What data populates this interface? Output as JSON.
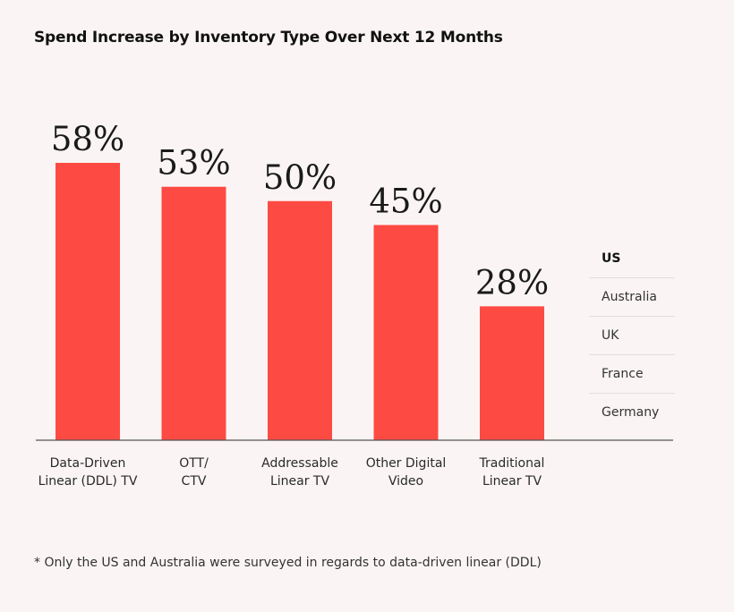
{
  "title": "Spend Increase by Inventory Type Over Next 12 Months",
  "footnote": "* Only the US and Australia were surveyed in regards to data-driven linear (DDL)",
  "legend": {
    "items": [
      "US",
      "Australia",
      "UK",
      "France",
      "Germany"
    ],
    "selected": "US"
  },
  "colors": {
    "bar": "#fd4b44",
    "axis": "#555555",
    "background": "#faf5f4"
  },
  "chart_data": {
    "type": "bar",
    "title": "Spend Increase by Inventory Type Over Next 12 Months",
    "series_name": "US",
    "categories": [
      [
        "Data-Driven",
        "Linear (DDL) TV"
      ],
      [
        "OTT/",
        "CTV"
      ],
      [
        "Addressable",
        "Linear TV"
      ],
      [
        "Other Digital",
        "Video"
      ],
      [
        "Traditional",
        "Linear TV"
      ]
    ],
    "values": [
      58,
      53,
      50,
      45,
      28
    ],
    "value_labels": [
      "58%",
      "53%",
      "50%",
      "45%",
      "28%"
    ],
    "unit": "%",
    "ylim": [
      0,
      100
    ],
    "xlabel": "",
    "ylabel": "",
    "grid": false
  }
}
